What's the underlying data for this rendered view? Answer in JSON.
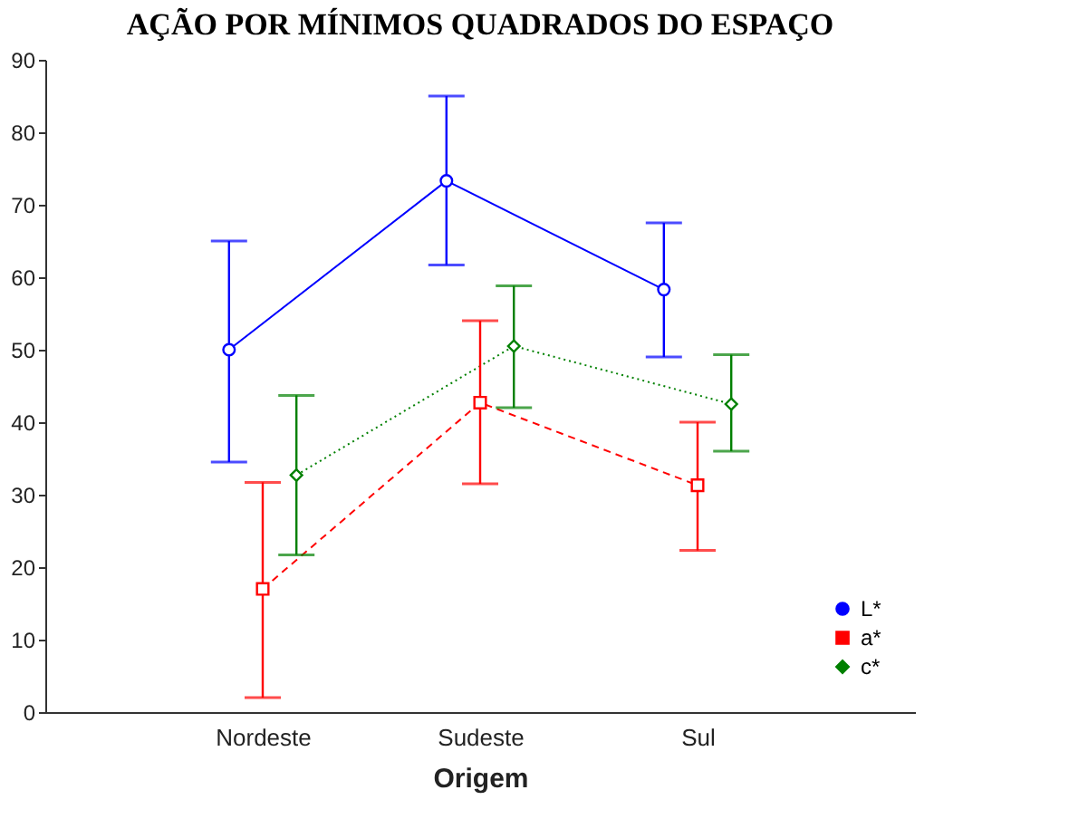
{
  "chart_data": {
    "type": "line",
    "title": "AÇÃO POR MÍNIMOS QUADRADOS DO ESPAÇO",
    "xlabel": "Origem",
    "categories": [
      "Nordeste",
      "Sudeste",
      "Sul"
    ],
    "series": [
      {
        "name": "L*",
        "color": "#0000ff",
        "marker": "circle",
        "line_style": "solid",
        "values": [
          50,
          73.3,
          58.3
        ],
        "errors": [
          [
            34.5,
            65
          ],
          [
            61.7,
            85
          ],
          [
            49,
            67.5
          ]
        ]
      },
      {
        "name": "a*",
        "color": "#ff0000",
        "marker": "square",
        "line_style": "dashed",
        "values": [
          17,
          42.7,
          31.3
        ],
        "errors": [
          [
            2,
            31.7
          ],
          [
            31.5,
            54
          ],
          [
            22.3,
            40
          ]
        ]
      },
      {
        "name": "c*",
        "color": "#008000",
        "marker": "diamond",
        "line_style": "dotted",
        "values": [
          32.7,
          50.5,
          42.5
        ],
        "errors": [
          [
            21.7,
            43.7
          ],
          [
            42,
            58.8
          ],
          [
            36,
            49.3
          ]
        ]
      }
    ],
    "ylim": [
      0,
      90
    ],
    "yticks": [
      0,
      10,
      20,
      30,
      40,
      50,
      60,
      70,
      80,
      90
    ],
    "grid": false,
    "legend": "bottom right"
  }
}
